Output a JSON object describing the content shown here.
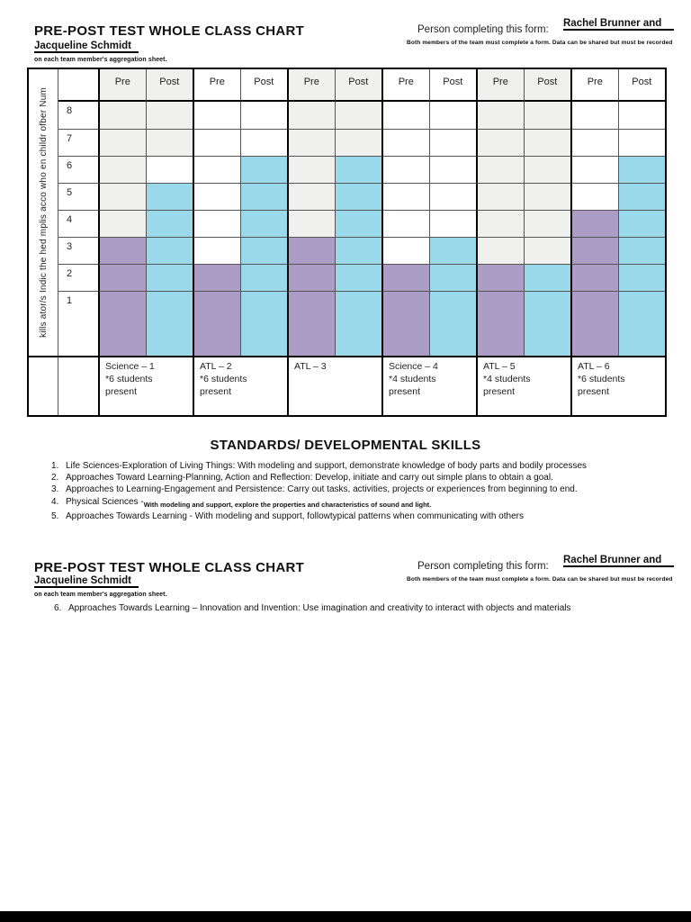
{
  "header": {
    "title": "PRE-POST TEST WHOLE CLASS CHART",
    "teacher_name": "Jacqueline Schmidt",
    "teacher_note": "on each team member's aggregation sheet.",
    "person_label": "Person completing this form:",
    "person_name": "Rachel Brunner and",
    "person_note": "Both members of the team must complete a form.  Data can be shared but must be recorded"
  },
  "chart_data": {
    "type": "bar",
    "title": "",
    "y_axis_label": "kills ator/s Indic the hed mplis acco who en childr ofber Num",
    "ylim": [
      0,
      8
    ],
    "row_values": [
      8,
      7,
      6,
      5,
      4,
      3,
      2,
      1
    ],
    "col_headers": [
      "Pre",
      "Post"
    ],
    "categories": [
      "Science – 1",
      "ATL – 2",
      "ATL – 3",
      "Science – 4",
      "ATL – 5",
      "ATL – 6"
    ],
    "notes": [
      "*6 students present",
      "*6 students present",
      "",
      "*4 students present",
      "*4 students present",
      "*6 students present"
    ],
    "series": [
      {
        "name": "Pre",
        "color": "#ab9dc5",
        "values": [
          3,
          2,
          3,
          2,
          2,
          4
        ]
      },
      {
        "name": "Post",
        "color": "#99d9e9",
        "values": [
          5,
          6,
          6,
          3,
          2,
          6
        ]
      }
    ],
    "shaded_groups": [
      true,
      false,
      true,
      false,
      true,
      false
    ],
    "shaded_bg": "#f0f0ee",
    "cell_overrides": [
      {
        "group": 0,
        "series": "Post",
        "row": 6,
        "fill": "#ffffff"
      }
    ],
    "grid": true,
    "legend_position": "none"
  },
  "standards": {
    "heading": "STANDARDS/ DEVELOPMENTAL SKILLS",
    "items": [
      {
        "num": "1.",
        "text": "Life Sciences-Exploration of Living Things: With modeling and support, demonstrate knowledge of body parts and bodily processes",
        "tail": ""
      },
      {
        "num": "2.",
        "text": "Approaches Toward Learning-Planning, Action and Reflection: Develop, initiate and carry out simple plans to obtain a goal.",
        "tail": ""
      },
      {
        "num": "3.",
        "text": "Approaches to Learning-Engagement and Persistence: Carry out tasks, activities, projects or experiences from beginning to end.",
        "tail": ""
      },
      {
        "num": "4.",
        "text": "Physical Sciences - ",
        "tail": "With modeling and support, explore the properties and characteristics of sound and light."
      },
      {
        "num": "5.",
        "text": "Approaches Towards Learning - With modeling and support, followtypical patterns when communicating with others",
        "tail": ""
      }
    ]
  },
  "footer": {
    "items": [
      {
        "num": "6.",
        "text": "Approaches Towards Learning – Innovation and Invention: Use imagination and creativity to interact with objects and materials",
        "tail": ""
      }
    ]
  },
  "page": {
    "background": "#ffffff",
    "bottom_bar_color": "#000000"
  }
}
